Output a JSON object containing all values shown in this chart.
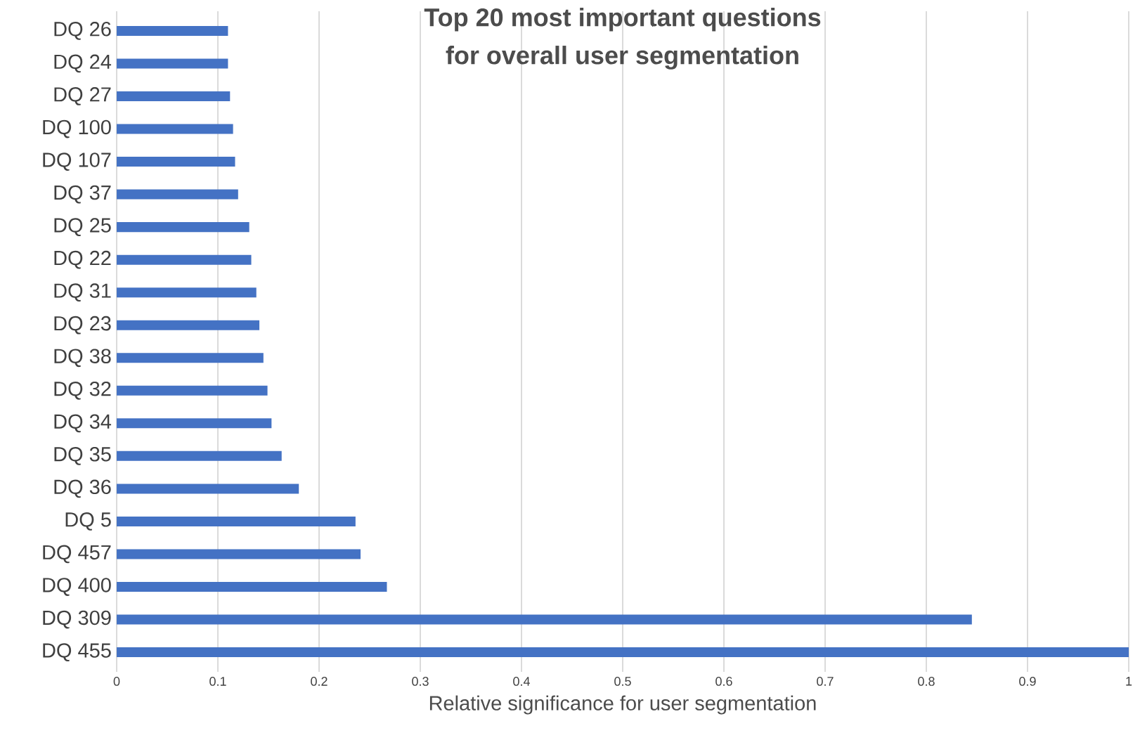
{
  "chart_data": {
    "type": "bar",
    "orientation": "horizontal",
    "title": "Top 20 most important questions\nfor overall user segmentation",
    "xlabel": "Relative significance  for user segmentation",
    "categories": [
      "DQ 26",
      "DQ 24",
      "DQ 27",
      "DQ 100",
      "DQ 107",
      "DQ 37",
      "DQ 25",
      "DQ 22",
      "DQ 31",
      "DQ 23",
      "DQ 38",
      "DQ 32",
      "DQ 34",
      "DQ 35",
      "DQ 36",
      "DQ 5",
      "DQ 457",
      "DQ 400",
      "DQ 309",
      "DQ 455"
    ],
    "values": [
      0.11,
      0.11,
      0.112,
      0.115,
      0.117,
      0.12,
      0.131,
      0.133,
      0.138,
      0.141,
      0.145,
      0.149,
      0.153,
      0.163,
      0.18,
      0.236,
      0.241,
      0.267,
      0.845,
      1.0
    ],
    "color": "#4472c4",
    "xlim": [
      0,
      1
    ],
    "xticks": [
      0,
      0.1,
      0.2,
      0.3,
      0.4,
      0.5,
      0.6,
      0.7,
      0.8,
      0.9,
      1
    ],
    "grid": "x"
  }
}
